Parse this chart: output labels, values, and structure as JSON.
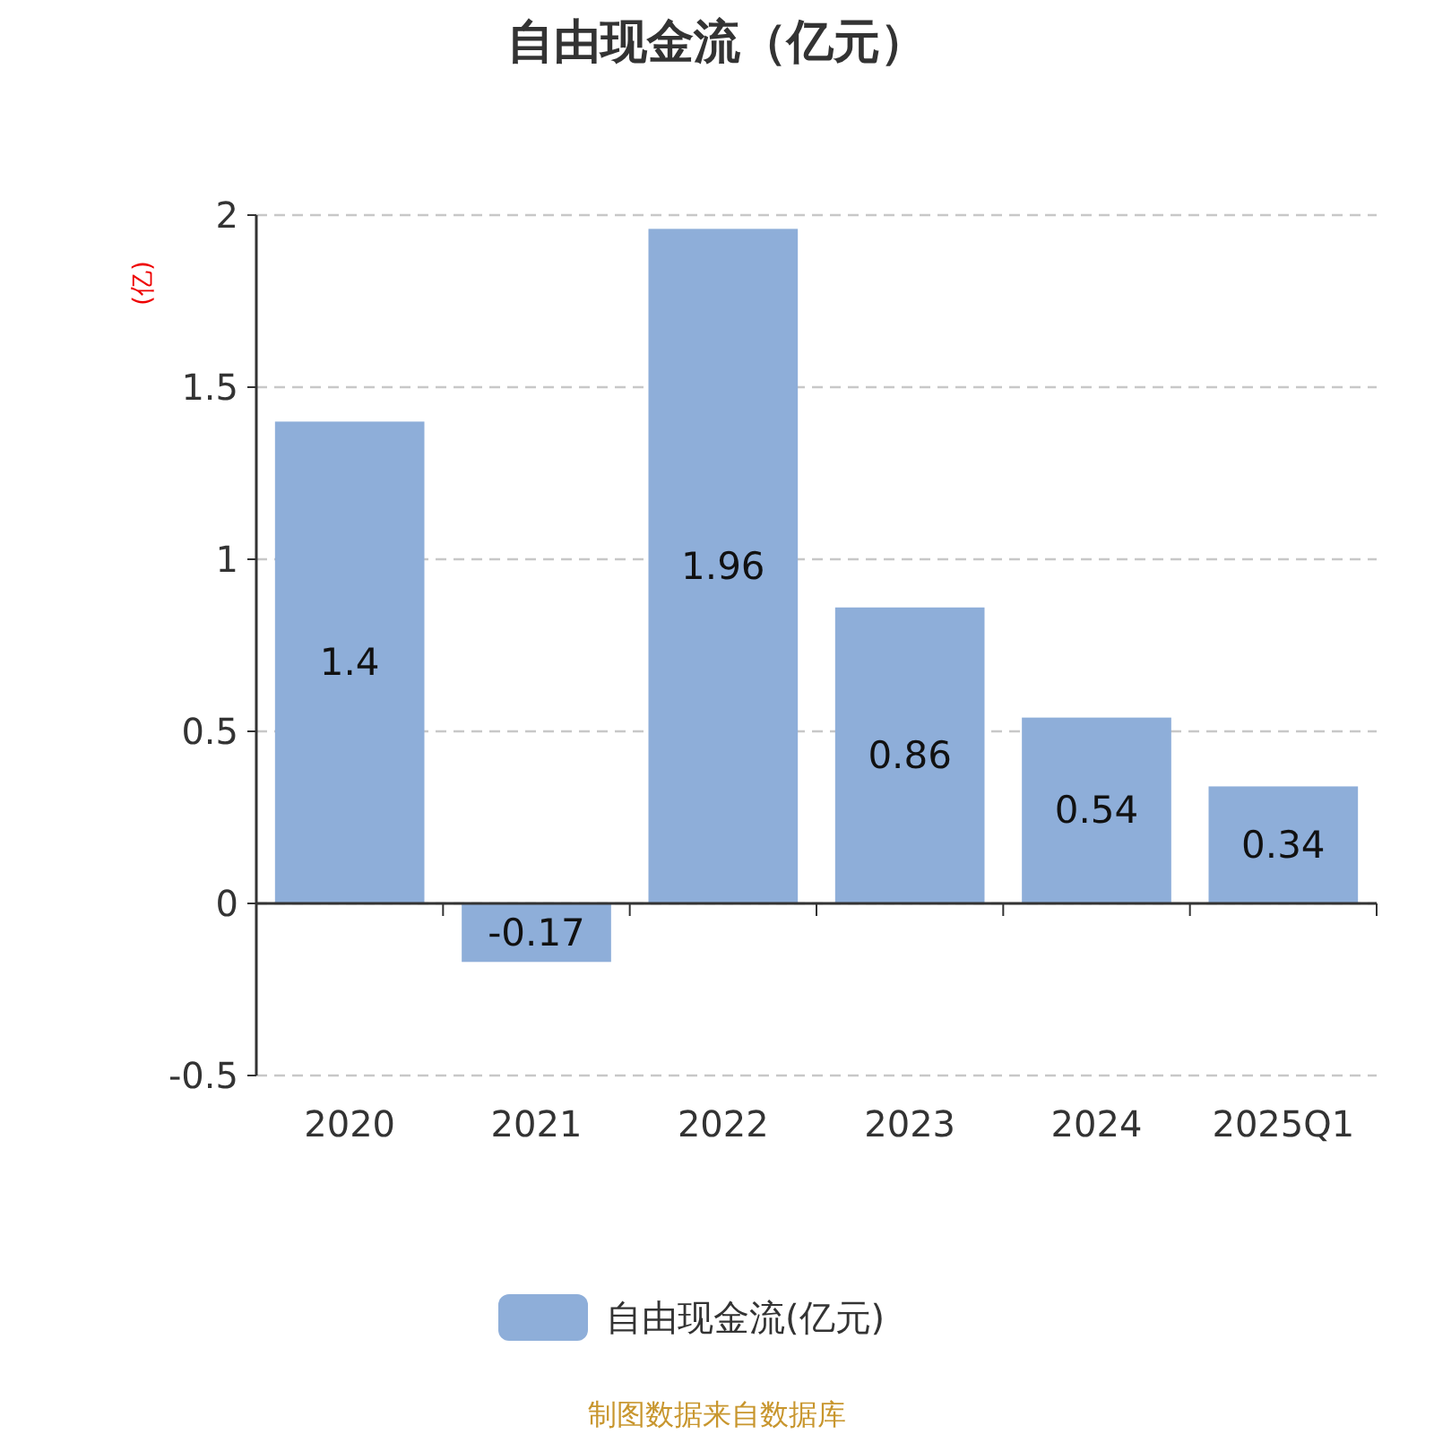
{
  "chart_data": {
    "type": "bar",
    "title": "自由现金流（亿元）",
    "ylabel": "(亿)",
    "categories": [
      "2020",
      "2021",
      "2022",
      "2023",
      "2024",
      "2025Q1"
    ],
    "series": [
      {
        "name": "自由现金流(亿元)",
        "color": "#8eaed9",
        "values": [
          1.4,
          -0.17,
          1.96,
          0.86,
          0.54,
          0.34
        ]
      }
    ],
    "ylim": [
      -0.5,
      2
    ],
    "yticks": [
      -0.5,
      0,
      0.5,
      1,
      1.5,
      2
    ],
    "grid": "y",
    "data_labels": true,
    "legend": "bottom",
    "annotations": [
      "制图数据来自数据库"
    ]
  }
}
